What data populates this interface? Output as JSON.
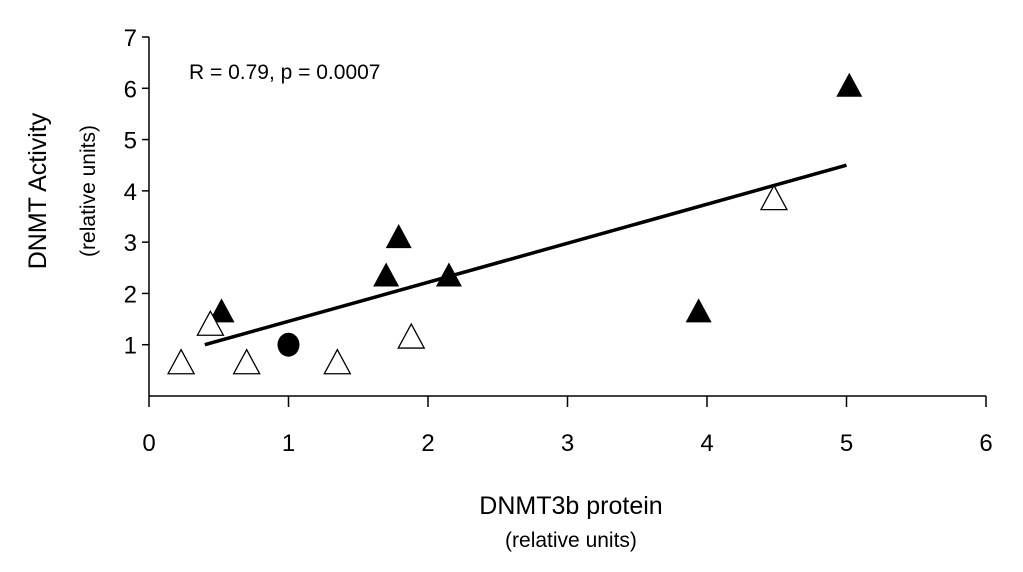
{
  "chart_data": {
    "type": "scatter",
    "annotation": "R = 0.79, p = 0.0007",
    "xlabel": "DNMT3b protein",
    "xlabel_sub": "(relative units)",
    "ylabel": "DNMT Activity",
    "ylabel_sub": "(relative units)",
    "xlim": [
      0,
      6
    ],
    "ylim": [
      0,
      7
    ],
    "x_ticks": [
      "0",
      "1",
      "2",
      "3",
      "4",
      "5",
      "6"
    ],
    "y_ticks": [
      "1",
      "2",
      "3",
      "4",
      "5",
      "6",
      "7"
    ],
    "grid": false,
    "series": [
      {
        "marker": "filled-triangle",
        "color": "#000000",
        "points": [
          {
            "x": 0.52,
            "y": 1.65
          },
          {
            "x": 1.7,
            "y": 2.35
          },
          {
            "x": 1.79,
            "y": 3.1
          },
          {
            "x": 2.15,
            "y": 2.35
          },
          {
            "x": 3.94,
            "y": 1.65
          },
          {
            "x": 5.02,
            "y": 6.05
          }
        ]
      },
      {
        "marker": "open-triangle",
        "color": "#000000",
        "points": [
          {
            "x": 0.23,
            "y": 0.65
          },
          {
            "x": 0.44,
            "y": 1.4
          },
          {
            "x": 0.7,
            "y": 0.65
          },
          {
            "x": 1.35,
            "y": 0.65
          },
          {
            "x": 1.88,
            "y": 1.15
          },
          {
            "x": 4.48,
            "y": 3.85
          }
        ]
      },
      {
        "marker": "filled-circle",
        "color": "#000000",
        "points": [
          {
            "x": 1.0,
            "y": 1.0
          }
        ]
      }
    ],
    "trendline": {
      "x": [
        0.4,
        5.0
      ],
      "y": [
        1.0,
        4.5
      ]
    }
  }
}
